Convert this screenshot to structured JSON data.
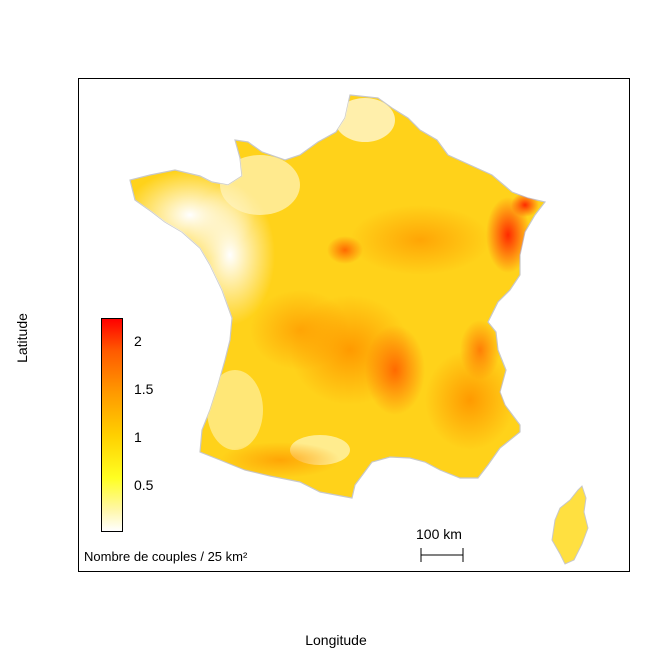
{
  "axes": {
    "x_label": "Longitude",
    "y_label": "Latitude"
  },
  "legend": {
    "title": "Nombre de couples / 25 km²",
    "ticks": [
      "2",
      "1.5",
      "1",
      "0.5"
    ],
    "colors": {
      "low": "#ffffff",
      "mid_low": "#ffff22",
      "mid": "#ffb000",
      "mid_high": "#ff6a00",
      "high": "#ff0000"
    }
  },
  "scale_bar": {
    "label": "100 km"
  },
  "map": {
    "regions": [
      "France (mainland)",
      "Corsica"
    ]
  }
}
